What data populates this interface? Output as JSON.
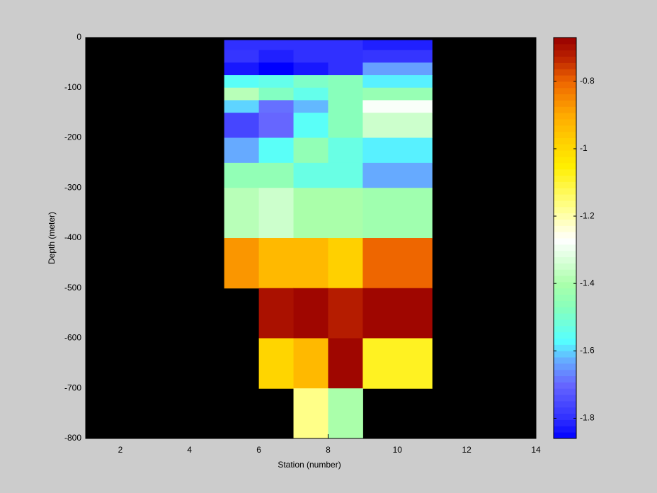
{
  "chart_data": {
    "type": "heatmap",
    "xlabel": "Station (number)",
    "ylabel": "Depth (meter)",
    "xlim": [
      1,
      14
    ],
    "ylim": [
      -800,
      0
    ],
    "xticks": [
      2,
      4,
      6,
      8,
      10,
      12,
      14
    ],
    "yticks": [
      -800,
      -700,
      -600,
      -500,
      -400,
      -300,
      -200,
      -100,
      0
    ],
    "background": "#000000",
    "x_edges": [
      5,
      6,
      7,
      8,
      9,
      11
    ],
    "y_edges": [
      -5,
      -25,
      -50,
      -75,
      -100,
      -125,
      -150,
      -200,
      -250,
      -300,
      -400,
      -500,
      -600,
      -700,
      -800
    ],
    "values": [
      [
        -1.8,
        -1.8,
        -1.8,
        -1.8,
        -1.82
      ],
      [
        -1.79,
        -1.82,
        -1.8,
        -1.8,
        -1.79
      ],
      [
        -1.83,
        -1.86,
        -1.83,
        -1.8,
        -1.64
      ],
      [
        -1.56,
        -1.54,
        -1.49,
        -1.47,
        -1.58
      ],
      [
        -1.38,
        -1.48,
        -1.54,
        -1.47,
        -1.44
      ],
      [
        -1.6,
        -1.69,
        -1.62,
        -1.47,
        -1.28
      ],
      [
        -1.76,
        -1.7,
        -1.56,
        -1.47,
        -1.35
      ],
      [
        -1.63,
        -1.56,
        -1.45,
        -1.53,
        -1.58
      ],
      [
        -1.45,
        -1.45,
        -1.53,
        -1.53,
        -1.63
      ],
      [
        -1.38,
        -1.35,
        -1.4,
        -1.4,
        -1.42
      ],
      [
        -0.87,
        -0.93,
        -0.93,
        -0.98,
        -0.8
      ],
      [
        null,
        -0.7,
        -0.68,
        -0.72,
        -0.68
      ],
      [
        null,
        -0.99,
        -0.93,
        -0.68,
        -1.08
      ],
      [
        null,
        null,
        -1.17,
        -1.4,
        null
      ]
    ],
    "clim": [
      -1.86,
      -0.67
    ],
    "cticks": [
      -1.8,
      -1.6,
      -1.4,
      -1.2,
      -1,
      -0.8
    ],
    "colorscale": [
      {
        "value": -1.86,
        "color": "#0000ff"
      },
      {
        "value": -1.8,
        "color": "#3030ff"
      },
      {
        "value": -1.7,
        "color": "#6666ff"
      },
      {
        "value": -1.63,
        "color": "#66aaff"
      },
      {
        "value": -1.57,
        "color": "#55ffff"
      },
      {
        "value": -1.47,
        "color": "#88ffbb"
      },
      {
        "value": -1.4,
        "color": "#aaffaa"
      },
      {
        "value": -1.35,
        "color": "#ccffcc"
      },
      {
        "value": -1.27,
        "color": "#ffffff"
      },
      {
        "value": -1.17,
        "color": "#ffff88"
      },
      {
        "value": -1.05,
        "color": "#ffee00"
      },
      {
        "value": -0.97,
        "color": "#ffcc00"
      },
      {
        "value": -0.9,
        "color": "#ffaa00"
      },
      {
        "value": -0.8,
        "color": "#ee6600"
      },
      {
        "value": -0.73,
        "color": "#bb2200"
      },
      {
        "value": -0.67,
        "color": "#990000"
      }
    ]
  }
}
